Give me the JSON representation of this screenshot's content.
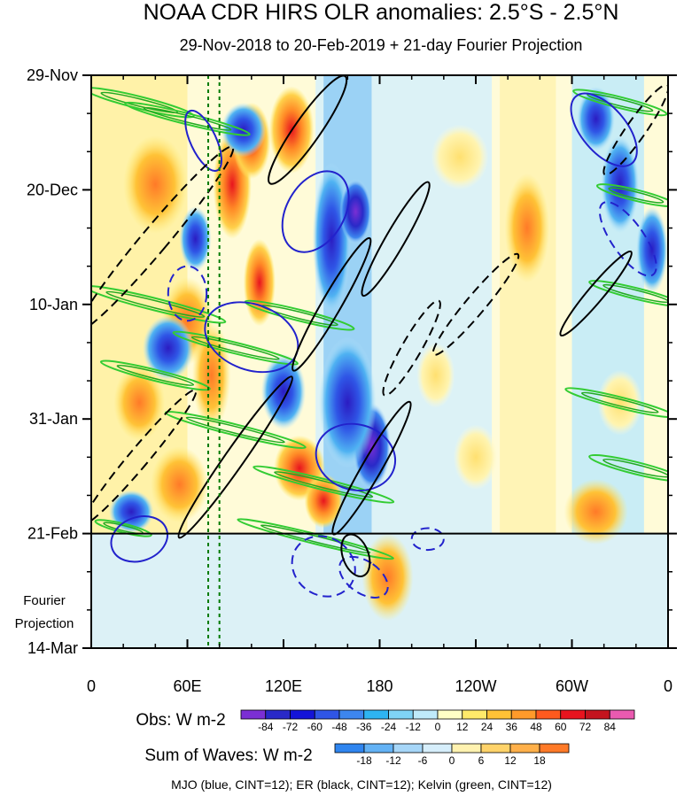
{
  "chart_data": {
    "type": "heatmap",
    "title": "NOAA CDR HIRS OLR anomalies: 2.5°S - 2.5°N",
    "subtitle": "29-Nov-2018 to 20-Feb-2019 + 21-day Fourier Projection",
    "x_ticks": [
      "0",
      "60E",
      "120E",
      "180",
      "120W",
      "60W",
      "0"
    ],
    "x_range_deg_east": [
      0,
      360
    ],
    "y_ticks": [
      "29-Nov",
      "20-Dec",
      "10-Jan",
      "31-Jan",
      "21-Feb",
      "14-Mar"
    ],
    "y_range_days": [
      0,
      105
    ],
    "observation_end": "21-Feb",
    "projection_label": [
      "Fourier",
      "Projection"
    ],
    "obs_colorbar": {
      "title": "Obs: W m-2",
      "labels": [
        "-84",
        "-72",
        "-60",
        "-48",
        "-36",
        "-24",
        "-12",
        "0",
        "12",
        "24",
        "36",
        "48",
        "60",
        "72",
        "84"
      ],
      "colors": [
        "#7b2fd4",
        "#2929c8",
        "#1414d8",
        "#2f55e6",
        "#3d86ef",
        "#2eb4f2",
        "#7fd3f5",
        "#bfeafa",
        "#ffffc6",
        "#ffea6a",
        "#ffc236",
        "#ff9a2a",
        "#ff5a1e",
        "#e8141e",
        "#c4141e",
        "#ea5ab0"
      ]
    },
    "waves_colorbar": {
      "title": "Sum of Waves: W m-2",
      "labels": [
        "-18",
        "-12",
        "-6",
        "0",
        "6",
        "12",
        "18"
      ],
      "colors": [
        "#2f85ef",
        "#63b2f5",
        "#a6d6f8",
        "#d6eefb",
        "#fff2b0",
        "#ffd36a",
        "#ffb04a",
        "#ff7a28"
      ]
    },
    "dashed_reference_lines_lon": [
      73,
      80
    ],
    "wave_contours": [
      {
        "name": "MJO",
        "color": "blue",
        "cint": 12
      },
      {
        "name": "ER",
        "color": "black",
        "cint": 12
      },
      {
        "name": "Kelvin",
        "color": "green",
        "cint": 12
      }
    ],
    "footnote": "MJO (blue, CINT=12); ER (black, CINT=12); Kelvin (green, CINT=12)"
  }
}
